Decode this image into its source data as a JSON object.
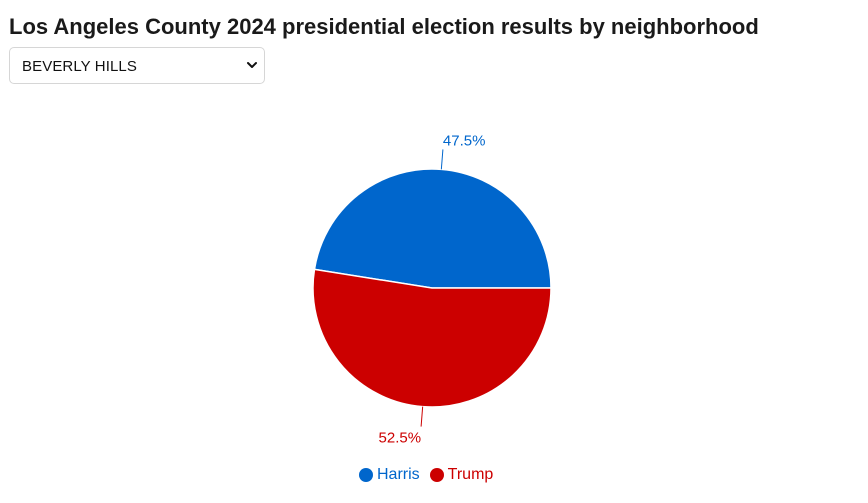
{
  "page": {
    "title": "Los Angeles County 2024 presidential election results by neighborhood"
  },
  "neighborhood_select": {
    "selected": "BEVERLY HILLS"
  },
  "colors": {
    "harris": "#0066CC",
    "trump": "#CC0000"
  },
  "chart_data": {
    "type": "pie",
    "title": "",
    "series": [
      {
        "name": "Harris",
        "value": 47.5,
        "label": "47.5%",
        "color": "#0066CC"
      },
      {
        "name": "Trump",
        "value": 52.5,
        "label": "52.5%",
        "color": "#CC0000"
      }
    ],
    "legend_position": "bottom",
    "start_angle_from": "3 o'clock, counter-clockwise"
  }
}
